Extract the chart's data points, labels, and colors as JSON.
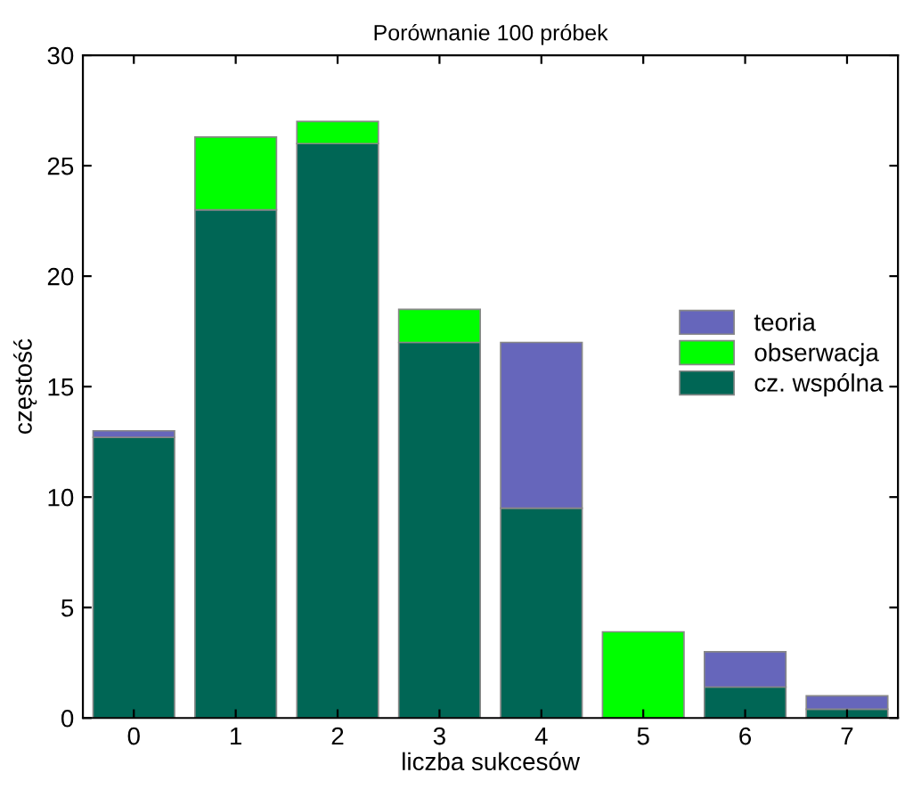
{
  "chart_data": {
    "type": "bar",
    "title": "Porównanie 100 próbek",
    "xlabel": "liczba sukcesów",
    "ylabel": "częstość",
    "categories": [
      "0",
      "1",
      "2",
      "3",
      "4",
      "5",
      "6",
      "7"
    ],
    "stacked": true,
    "series": [
      {
        "name": "cz. wspólna",
        "color": "#006655",
        "values": [
          12.7,
          23.0,
          26.0,
          17.0,
          9.5,
          null,
          1.4,
          0.4
        ]
      },
      {
        "name": "teoria",
        "color": "#6666bb",
        "values": [
          0.3,
          null,
          null,
          null,
          7.5,
          null,
          1.6,
          0.6
        ]
      },
      {
        "name": "obserwacja",
        "color": "#00ff00",
        "values": [
          null,
          3.3,
          1.0,
          1.5,
          null,
          3.9,
          null,
          null
        ]
      }
    ],
    "ylim": [
      0,
      30
    ],
    "yticks": [
      0,
      5,
      10,
      15,
      20,
      25,
      30
    ],
    "grid": false,
    "legend": "center right"
  }
}
